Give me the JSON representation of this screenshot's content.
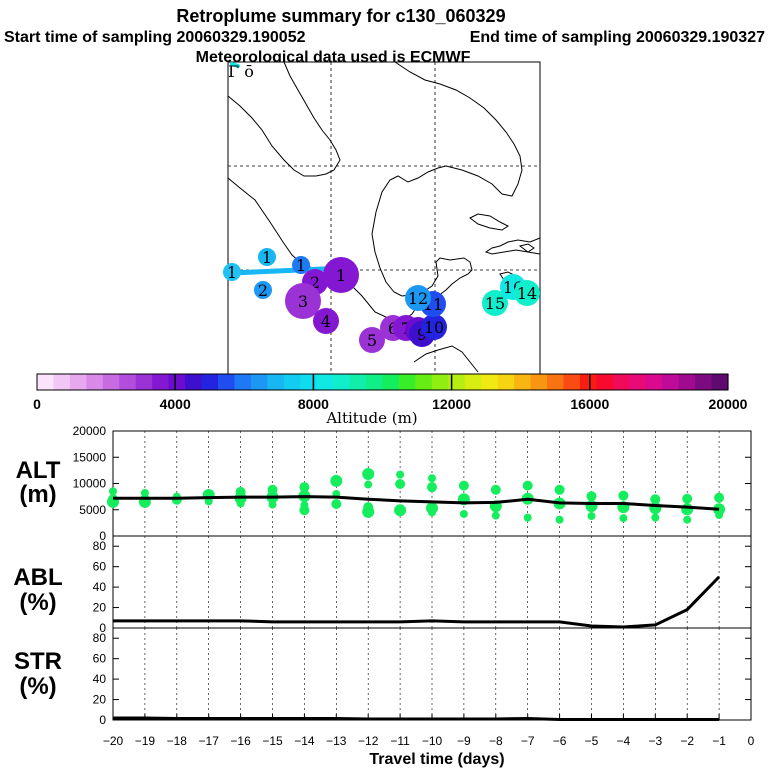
{
  "header": {
    "title": "Retroplume summary for c130_060329",
    "start_label": "Start time of sampling 20060329.190052",
    "end_label": "End time of sampling 20060329.190327",
    "met_label": "Meteorological data used is ECMWF"
  },
  "colorbar": {
    "label": "Altitude (m)",
    "min": 0,
    "max": 20000,
    "ticks": [
      "0",
      "4000",
      "8000",
      "12000",
      "16000",
      "20000"
    ],
    "colors": [
      "#fbe3fb",
      "#f2c6f5",
      "#e8a8f0",
      "#d98ae9",
      "#c86be3",
      "#b24ddc",
      "#9b32d6",
      "#8418d2",
      "#6b0ccf",
      "#3e10ce",
      "#2424e0",
      "#1f4df0",
      "#1f78f4",
      "#1c98f4",
      "#18b6f2",
      "#12cdf0",
      "#0fdcef",
      "#10e8e4",
      "#10eecc",
      "#10eeaa",
      "#10ee86",
      "#14ee5c",
      "#38ee28",
      "#66ee14",
      "#90ee12",
      "#b6ee12",
      "#d8ee12",
      "#f0ea12",
      "#f6d412",
      "#f8b612",
      "#f89612",
      "#f87412",
      "#f84c12",
      "#f81c12",
      "#f80a2e",
      "#f00a5a",
      "#e80a78",
      "#da0a90",
      "#c00a98",
      "#a00a8e",
      "#7e0a82",
      "#5e0a70"
    ]
  },
  "map": {
    "points": [
      {
        "label": "1",
        "color": "#1fc2f2",
        "size": "small"
      },
      {
        "label": "1",
        "color": "#18b6f2",
        "size": "small"
      },
      {
        "label": "2",
        "color": "#1c98f4",
        "size": "small"
      },
      {
        "label": "1",
        "color": "#1f78f4",
        "size": "small"
      },
      {
        "label": "2",
        "color": "#8418d2",
        "size": "medium"
      },
      {
        "label": "3",
        "color": "#9b32d6",
        "size": "large"
      },
      {
        "label": "4",
        "color": "#8418d2",
        "size": "medium"
      },
      {
        "label": "1",
        "color": "#8418d2",
        "size": "large"
      },
      {
        "label": "5",
        "color": "#9b32d6",
        "size": "medium"
      },
      {
        "label": "6",
        "color": "#9b32d6",
        "size": "medium"
      },
      {
        "label": "7",
        "color": "#8418d2",
        "size": "medium"
      },
      {
        "label": "8",
        "color": "#6b0ccf",
        "size": "medium"
      },
      {
        "label": "9",
        "color": "#3e10ce",
        "size": "medium"
      },
      {
        "label": "10",
        "color": "#2424e0",
        "size": "medium"
      },
      {
        "label": "11",
        "color": "#1f4df0",
        "size": "medium"
      },
      {
        "label": "12",
        "color": "#1c98f4",
        "size": "medium"
      },
      {
        "label": "15",
        "color": "#10eecc",
        "size": "medium"
      },
      {
        "label": "16",
        "color": "#10e8e4",
        "size": "medium"
      },
      {
        "label": "14",
        "color": "#10eecc",
        "size": "medium"
      }
    ],
    "edge_label": "Γ ō"
  },
  "panels": {
    "alt": {
      "label_line1": "ALT",
      "label_line2": "(m)"
    },
    "abl": {
      "label_line1": "ABL",
      "label_line2": "(%)"
    },
    "str": {
      "label_line1": "STR",
      "label_line2": "(%)"
    }
  },
  "x_axis": {
    "label": "Travel time (days)",
    "ticks": [
      "−20",
      "−19",
      "−18",
      "−17",
      "−16",
      "−15",
      "−14",
      "−13",
      "−12",
      "−11",
      "−10",
      "−9",
      "−8",
      "−7",
      "−6",
      "−5",
      "−4",
      "−3",
      "−2",
      "−1",
      "0"
    ]
  },
  "chart_data": [
    {
      "type": "scatter",
      "title": "ALT (m)",
      "xlabel": "Travel time (days)",
      "ylabel": "ALT (m)",
      "xlim": [
        -20,
        0
      ],
      "ylim": [
        0,
        20000
      ],
      "ytick_labels": [
        "0",
        "5000",
        "10000",
        "15000",
        "20000"
      ],
      "point_color": "#14ee5c",
      "mean_line": {
        "x": [
          -20,
          -19,
          -18,
          -17,
          -16,
          -15,
          -14,
          -13,
          -12,
          -11,
          -10,
          -9,
          -8,
          -7,
          -6,
          -5,
          -4,
          -3,
          -2,
          -1
        ],
        "y": [
          7200,
          7200,
          7200,
          7300,
          7400,
          7400,
          7500,
          7400,
          7000,
          6700,
          6500,
          6300,
          6400,
          7000,
          6300,
          6200,
          6200,
          5800,
          5500,
          5100
        ]
      },
      "points": [
        {
          "x": -20,
          "y": 8500
        },
        {
          "x": -20,
          "y": 7000
        },
        {
          "x": -20,
          "y": 6500
        },
        {
          "x": -19,
          "y": 8200
        },
        {
          "x": -19,
          "y": 7000
        },
        {
          "x": -19,
          "y": 6500
        },
        {
          "x": -18,
          "y": 7500
        },
        {
          "x": -18,
          "y": 6900
        },
        {
          "x": -17,
          "y": 7800
        },
        {
          "x": -17,
          "y": 6600
        },
        {
          "x": -16,
          "y": 8400
        },
        {
          "x": -16,
          "y": 7200
        },
        {
          "x": -16,
          "y": 6200
        },
        {
          "x": -15,
          "y": 8800
        },
        {
          "x": -15,
          "y": 7400
        },
        {
          "x": -15,
          "y": 6000
        },
        {
          "x": -14,
          "y": 9300
        },
        {
          "x": -14,
          "y": 7600
        },
        {
          "x": -14,
          "y": 5900
        },
        {
          "x": -14,
          "y": 4900
        },
        {
          "x": -13,
          "y": 10500
        },
        {
          "x": -13,
          "y": 8000
        },
        {
          "x": -13,
          "y": 6100
        },
        {
          "x": -12,
          "y": 11800
        },
        {
          "x": -12,
          "y": 9800
        },
        {
          "x": -12,
          "y": 5500
        },
        {
          "x": -12,
          "y": 4600
        },
        {
          "x": -11,
          "y": 11700
        },
        {
          "x": -11,
          "y": 9900
        },
        {
          "x": -11,
          "y": 4900
        },
        {
          "x": -10,
          "y": 11000
        },
        {
          "x": -10,
          "y": 9300
        },
        {
          "x": -10,
          "y": 5300
        },
        {
          "x": -10,
          "y": 4500
        },
        {
          "x": -9,
          "y": 9600
        },
        {
          "x": -9,
          "y": 7000
        },
        {
          "x": -9,
          "y": 4200
        },
        {
          "x": -8,
          "y": 8800
        },
        {
          "x": -8,
          "y": 5700
        },
        {
          "x": -8,
          "y": 3900
        },
        {
          "x": -7,
          "y": 9600
        },
        {
          "x": -7,
          "y": 7100
        },
        {
          "x": -7,
          "y": 3500
        },
        {
          "x": -6,
          "y": 8800
        },
        {
          "x": -6,
          "y": 6200
        },
        {
          "x": -6,
          "y": 3100
        },
        {
          "x": -5,
          "y": 7600
        },
        {
          "x": -5,
          "y": 5700
        },
        {
          "x": -5,
          "y": 3800
        },
        {
          "x": -4,
          "y": 7700
        },
        {
          "x": -4,
          "y": 5500
        },
        {
          "x": -4,
          "y": 3400
        },
        {
          "x": -3,
          "y": 7000
        },
        {
          "x": -3,
          "y": 5300
        },
        {
          "x": -3,
          "y": 3500
        },
        {
          "x": -2,
          "y": 7100
        },
        {
          "x": -2,
          "y": 5100
        },
        {
          "x": -2,
          "y": 3100
        },
        {
          "x": -1,
          "y": 7300
        },
        {
          "x": -1,
          "y": 5100
        },
        {
          "x": -1,
          "y": 4000
        }
      ]
    },
    {
      "type": "line",
      "title": "ABL (%)",
      "xlabel": "Travel time (days)",
      "ylabel": "ABL (%)",
      "xlim": [
        -20,
        0
      ],
      "ylim": [
        0,
        90
      ],
      "ytick_labels": [
        "0",
        "20",
        "40",
        "60",
        "80"
      ],
      "series": [
        {
          "name": "ABL",
          "x": [
            -20,
            -19,
            -18,
            -17,
            -16,
            -15,
            -14,
            -13,
            -12,
            -11,
            -10,
            -9,
            -8,
            -7,
            -6,
            -5,
            -4,
            -3,
            -2,
            -1
          ],
          "y": [
            7,
            7,
            7,
            7,
            7,
            6,
            6,
            6,
            6,
            6,
            7,
            6,
            6,
            6,
            6,
            2,
            1,
            3,
            18,
            50
          ]
        }
      ]
    },
    {
      "type": "line",
      "title": "STR (%)",
      "xlabel": "Travel time (days)",
      "ylabel": "STR (%)",
      "xlim": [
        -20,
        0
      ],
      "ylim": [
        0,
        90
      ],
      "ytick_labels": [
        "0",
        "20",
        "40",
        "60",
        "80"
      ],
      "series": [
        {
          "name": "STR",
          "x": [
            -20,
            -19,
            -18,
            -17,
            -16,
            -15,
            -14,
            -13,
            -12,
            -11,
            -10,
            -9,
            -8,
            -7,
            -6,
            -5,
            -4,
            -3,
            -2,
            -1
          ],
          "y": [
            2,
            2,
            1.5,
            1.5,
            1.5,
            1.5,
            1.5,
            1.5,
            1,
            1,
            1,
            1,
            1,
            1.5,
            0.5,
            0.5,
            0.5,
            0.5,
            0.5,
            0.5
          ]
        }
      ]
    }
  ]
}
